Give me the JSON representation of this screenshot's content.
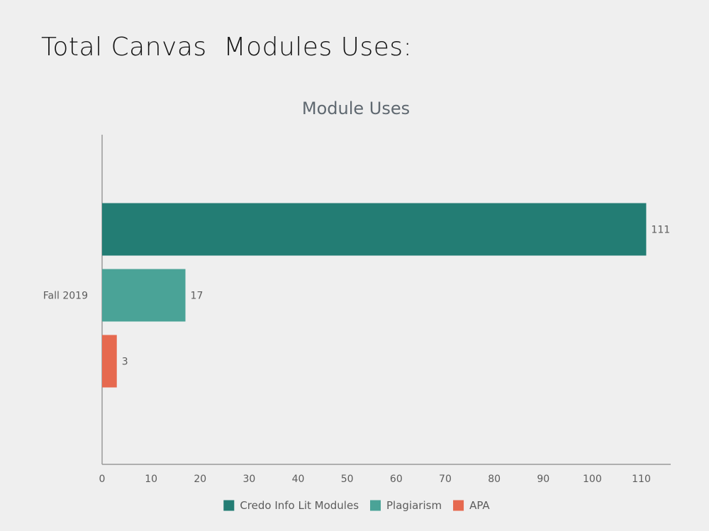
{
  "slide": {
    "title": "Total Canvas  Modules Uses:"
  },
  "colors": {
    "background": "#efefef",
    "axis": "#9a9a9a",
    "text": "#5c5c5c",
    "title": "#5f6870"
  },
  "chart_data": {
    "type": "bar",
    "orientation": "horizontal",
    "title": "Module Uses",
    "xlabel": "",
    "ylabel": "",
    "categories": [
      "Fall 2019"
    ],
    "series": [
      {
        "name": "Credo Info Lit Modules",
        "values": [
          111
        ],
        "color": "#237d74"
      },
      {
        "name": "Plagiarism",
        "values": [
          17
        ],
        "color": "#4aa397"
      },
      {
        "name": "APA",
        "values": [
          3
        ],
        "color": "#e6694f"
      }
    ],
    "xlim": [
      0,
      116
    ],
    "xticks": [
      0,
      10,
      20,
      30,
      40,
      50,
      60,
      70,
      80,
      90,
      100,
      110
    ],
    "data_labels": true,
    "grid": false,
    "legend": "bottom"
  }
}
